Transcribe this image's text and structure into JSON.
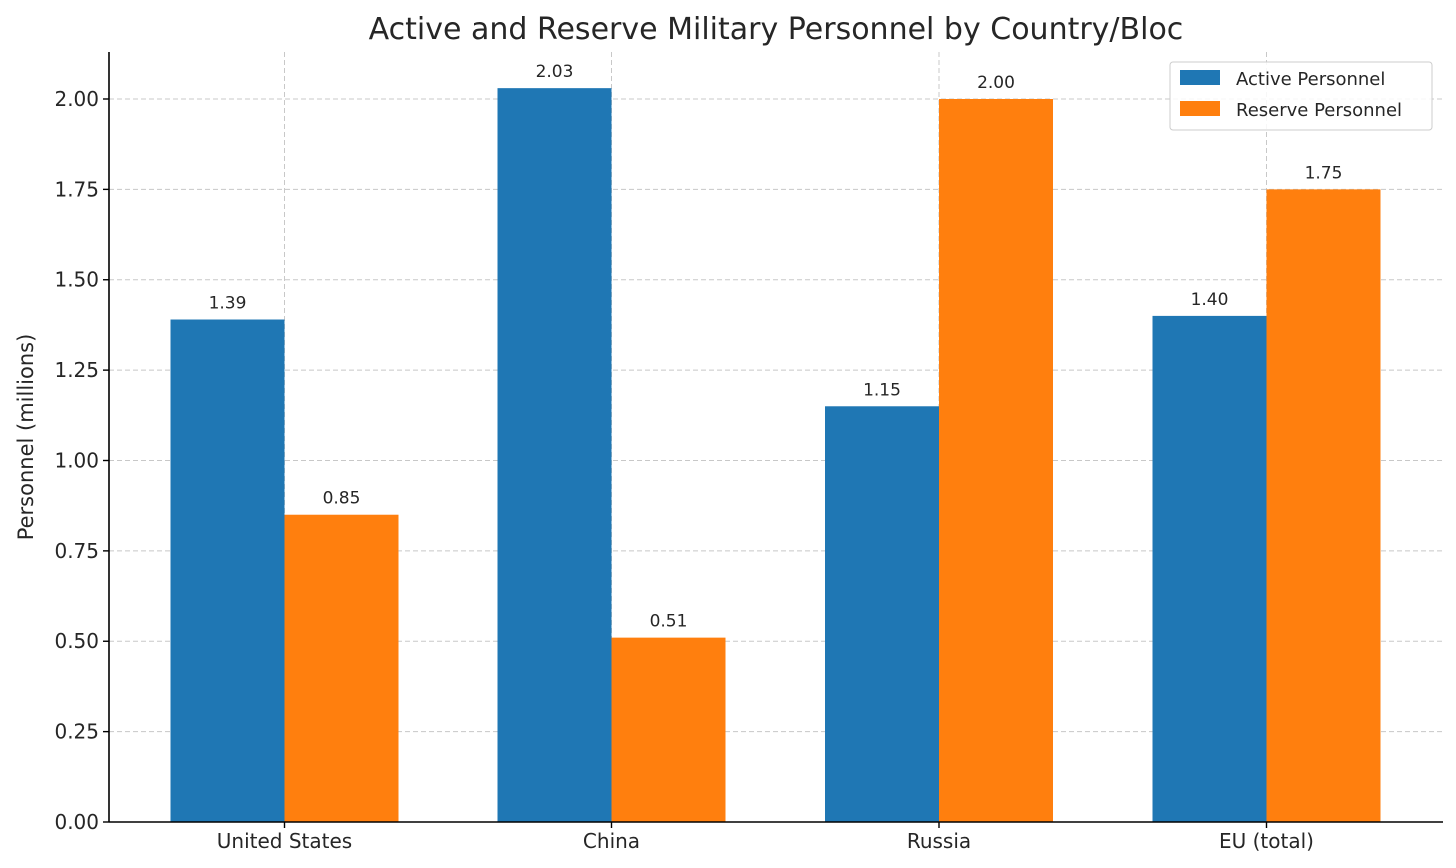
{
  "chart_data": {
    "type": "bar",
    "title": "Active and Reserve Military Personnel by Country/Bloc",
    "xlabel": "",
    "ylabel": "Personnel (millions)",
    "categories": [
      "United States",
      "China",
      "Russia",
      "EU (total)"
    ],
    "series": [
      {
        "name": "Active Personnel",
        "color": "#1f77b4",
        "values": [
          1.39,
          2.03,
          1.15,
          1.4
        ]
      },
      {
        "name": "Reserve Personnel",
        "color": "#ff7f0e",
        "values": [
          0.85,
          0.51,
          2.0,
          1.75
        ]
      }
    ],
    "ylim": [
      0,
      2.13
    ],
    "yticks": [
      "0.00",
      "0.25",
      "0.50",
      "0.75",
      "1.00",
      "1.25",
      "1.50",
      "1.75",
      "2.00"
    ],
    "grid": true,
    "legend_position": "top-right"
  }
}
